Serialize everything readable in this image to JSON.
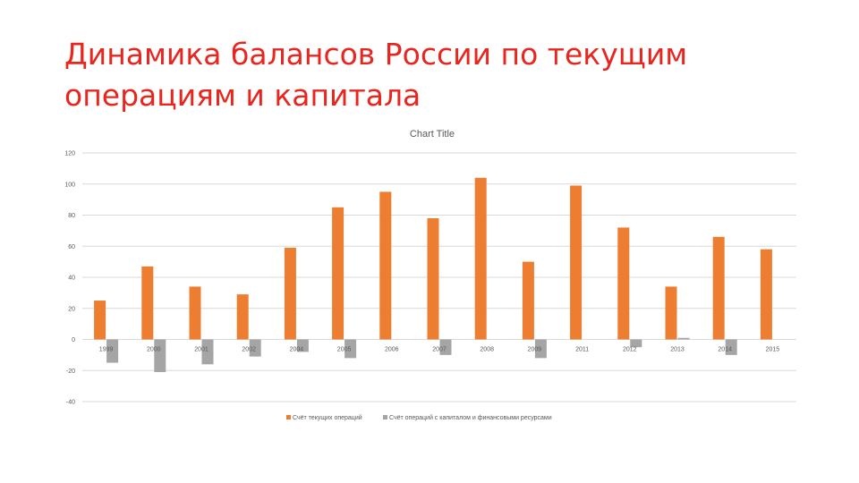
{
  "slide": {
    "title_lines": [
      "Динамика балансов России  по текущим",
      "операциям и капитала"
    ]
  },
  "colors": {
    "title": "#e8251f",
    "series_current": "#ed7d31",
    "series_capital": "#a5a5a5",
    "grid": "#d9d9d9"
  },
  "chart_data": {
    "type": "bar",
    "title": "Chart Title",
    "xlabel": "",
    "ylabel": "",
    "ylim": [
      -40,
      120
    ],
    "yticks": [
      -40,
      -20,
      0,
      20,
      40,
      60,
      80,
      100,
      120
    ],
    "grid": true,
    "legend_position": "bottom",
    "categories": [
      "1999",
      "2000",
      "2001",
      "2002",
      "2004",
      "2005",
      "2006",
      "2007",
      "2008",
      "2009",
      "2011",
      "2012",
      "2013",
      "2014",
      "2015"
    ],
    "series": [
      {
        "name": "Счёт текущих операций",
        "color": "#ed7d31",
        "values": [
          25,
          47,
          34,
          29,
          59,
          85,
          95,
          78,
          104,
          50,
          99,
          72,
          34,
          66,
          58
        ]
      },
      {
        "name": "Счёт операций с капиталом и финансовыми ресурсами",
        "color": "#a5a5a5",
        "values": [
          -15,
          -21,
          -16,
          -11,
          -8,
          -12,
          0,
          -10,
          0,
          -12,
          0,
          -5,
          1,
          -10,
          0
        ]
      }
    ]
  }
}
